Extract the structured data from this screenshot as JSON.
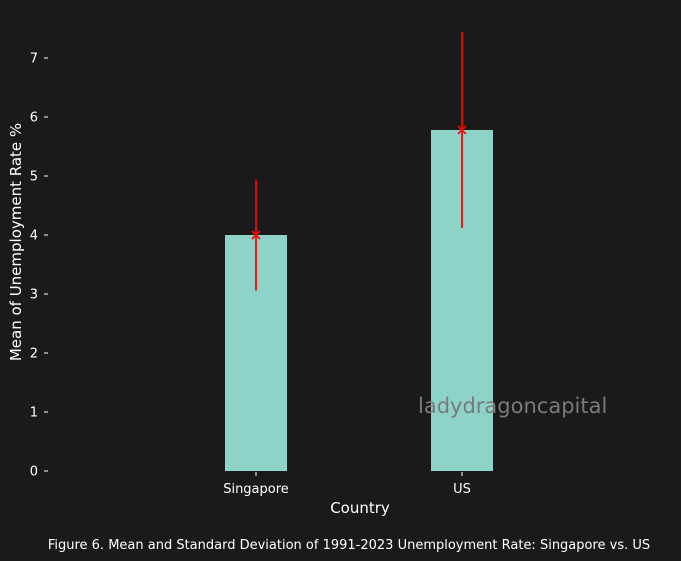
{
  "chart_data": {
    "type": "bar",
    "categories": [
      "Singapore",
      "US"
    ],
    "values": [
      4.0,
      5.78
    ],
    "error": [
      0.94,
      1.66
    ],
    "xlabel": "Country",
    "ylabel": "Mean of Unemployment Rate %",
    "yticks": [
      0,
      1,
      2,
      3,
      4,
      5,
      6,
      7
    ],
    "ylim": [
      0,
      7.45
    ],
    "grid": false
  },
  "caption": "Figure 6. Mean and Standard Deviation of 1991-2023 Unemployment Rate: Singapore vs. US",
  "watermark": "ladydragoncapital",
  "colors": {
    "background": "#1a1a1a",
    "bar": "#8dd3c7",
    "error": "#ff0000",
    "text": "#ffffff",
    "watermark": "#7a7a7a"
  }
}
